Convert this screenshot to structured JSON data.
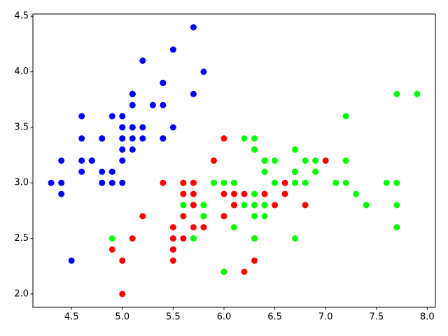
{
  "chart_data": {
    "type": "scatter",
    "xlim": [
      4.12,
      8.08
    ],
    "ylim": [
      1.88,
      4.52
    ],
    "xticks": [
      4.5,
      {
        "value": 5,
        "label": "5.0"
      },
      5.5,
      {
        "value": 6,
        "label": "6.0"
      },
      6.5,
      {
        "value": 7,
        "label": "7.0"
      },
      7.5,
      {
        "value": 8,
        "label": "8.0"
      }
    ],
    "yticks": [
      {
        "value": 2,
        "label": "2.0"
      },
      2.5,
      {
        "value": 3,
        "label": "3.0"
      },
      3.5,
      {
        "value": 4,
        "label": "4.0"
      },
      4.5
    ],
    "series": [
      {
        "color": "#0000ff",
        "x": [
          5.1,
          4.9,
          4.7,
          4.6,
          5.0,
          5.4,
          4.6,
          5.0,
          4.4,
          4.9,
          5.4,
          4.8,
          4.8,
          4.3,
          5.8,
          5.7,
          5.4,
          5.1,
          5.7,
          5.1,
          5.4,
          5.1,
          4.6,
          5.1,
          4.8,
          5.0,
          5.0,
          5.2,
          5.2,
          4.7,
          4.8,
          5.4,
          5.2,
          5.5,
          4.9,
          5.0,
          5.5,
          4.9,
          4.4,
          5.1,
          5.0,
          4.5,
          4.4,
          5.0,
          5.1,
          4.8,
          5.1,
          4.6,
          5.3,
          5.0
        ],
        "y": [
          3.5,
          3.0,
          3.2,
          3.1,
          3.6,
          3.9,
          3.4,
          3.4,
          2.9,
          3.1,
          3.7,
          3.4,
          3.0,
          3.0,
          4.0,
          4.4,
          3.9,
          3.5,
          3.8,
          3.8,
          3.4,
          3.7,
          3.6,
          3.3,
          3.4,
          3.0,
          3.4,
          3.5,
          3.4,
          3.2,
          3.1,
          3.4,
          4.1,
          4.2,
          3.1,
          3.2,
          3.5,
          3.6,
          3.0,
          3.4,
          3.5,
          2.3,
          3.2,
          3.5,
          3.8,
          3.0,
          3.8,
          3.2,
          3.7,
          3.3
        ]
      },
      {
        "color": "#ff0000",
        "x": [
          7.0,
          6.4,
          6.9,
          5.5,
          6.5,
          5.7,
          6.3,
          4.9,
          6.6,
          5.2,
          5.0,
          5.9,
          6.0,
          6.1,
          5.6,
          6.7,
          5.6,
          5.8,
          6.2,
          5.6,
          5.9,
          6.1,
          6.3,
          6.1,
          6.4,
          6.6,
          6.8,
          6.7,
          6.0,
          5.7,
          5.5,
          5.5,
          5.8,
          6.0,
          5.4,
          6.0,
          6.7,
          6.3,
          5.6,
          5.5,
          5.5,
          6.1,
          5.8,
          5.0,
          5.6,
          5.7,
          5.7,
          6.2,
          5.1,
          5.7
        ],
        "y": [
          3.2,
          3.2,
          3.1,
          2.3,
          2.8,
          2.8,
          3.3,
          2.4,
          2.9,
          2.7,
          2.0,
          3.0,
          2.2,
          2.9,
          2.9,
          3.1,
          3.0,
          2.7,
          2.2,
          2.5,
          3.2,
          2.8,
          2.5,
          2.8,
          2.9,
          3.0,
          2.8,
          3.0,
          2.9,
          2.6,
          2.4,
          2.4,
          2.7,
          2.7,
          3.0,
          3.4,
          3.1,
          2.3,
          3.0,
          2.5,
          2.6,
          3.0,
          2.6,
          2.3,
          2.7,
          3.0,
          2.9,
          2.9,
          2.5,
          2.8
        ]
      },
      {
        "color": "#00ff00",
        "x": [
          6.3,
          5.8,
          7.1,
          6.3,
          6.5,
          7.6,
          4.9,
          7.3,
          6.7,
          7.2,
          6.5,
          6.4,
          6.8,
          5.7,
          5.8,
          6.4,
          6.5,
          7.7,
          7.7,
          6.0,
          6.9,
          5.6,
          7.7,
          6.3,
          6.7,
          7.2,
          6.2,
          6.1,
          6.4,
          7.2,
          7.4,
          7.9,
          6.4,
          6.3,
          6.1,
          7.7,
          6.3,
          6.4,
          6.0,
          6.9,
          6.7,
          6.9,
          5.8,
          6.8,
          6.7,
          6.7,
          6.3,
          6.5,
          6.2,
          5.9
        ],
        "y": [
          3.3,
          2.7,
          3.0,
          2.9,
          3.0,
          3.0,
          2.5,
          2.9,
          2.5,
          3.6,
          3.2,
          2.7,
          3.0,
          2.5,
          2.8,
          3.2,
          3.0,
          3.8,
          2.6,
          2.2,
          3.2,
          2.8,
          2.8,
          2.7,
          3.3,
          3.2,
          2.8,
          3.0,
          2.8,
          3.0,
          2.8,
          3.8,
          2.8,
          2.8,
          2.6,
          3.0,
          3.4,
          3.1,
          3.0,
          3.1,
          3.1,
          3.1,
          2.7,
          3.2,
          3.3,
          3.0,
          2.5,
          3.0,
          3.4,
          3.0
        ]
      }
    ]
  }
}
